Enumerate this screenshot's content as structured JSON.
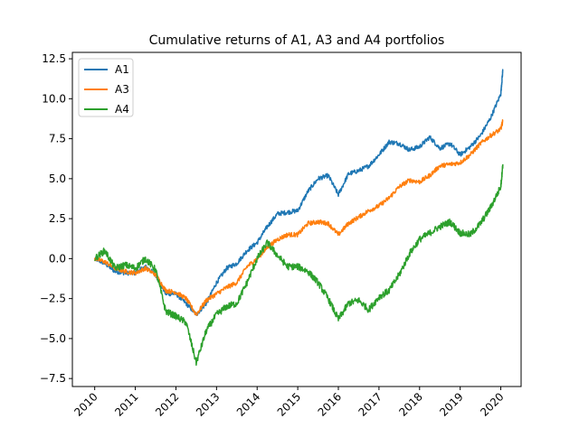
{
  "chart_data": {
    "type": "line",
    "title": "Cumulative returns of A1, A3 and A4 portfolios",
    "xlabel": "",
    "ylabel": "",
    "x_tick_labels": [
      "2010",
      "2011",
      "2012",
      "2013",
      "2014",
      "2015",
      "2016",
      "2017",
      "2018",
      "2019",
      "2020"
    ],
    "y_tick_labels": [
      "12.5",
      "10.0",
      "7.5",
      "5.0",
      "2.5",
      "0.0",
      "−2.5",
      "−5.0",
      "−7.5"
    ],
    "y_ticks": [
      12.5,
      10.0,
      7.5,
      5.0,
      2.5,
      0.0,
      -2.5,
      -5.0,
      -7.5
    ],
    "xlim": [
      2009.45,
      2020.5
    ],
    "ylim": [
      -8.0,
      12.9
    ],
    "grid": false,
    "legend": "upper left",
    "x": [
      2010.0,
      2010.25,
      2010.5,
      2010.75,
      2011.0,
      2011.25,
      2011.5,
      2011.75,
      2012.0,
      2012.25,
      2012.5,
      2012.75,
      2013.0,
      2013.25,
      2013.5,
      2013.75,
      2014.0,
      2014.25,
      2014.5,
      2014.75,
      2015.0,
      2015.25,
      2015.5,
      2015.75,
      2016.0,
      2016.25,
      2016.5,
      2016.75,
      2017.0,
      2017.25,
      2017.5,
      2017.75,
      2018.0,
      2018.25,
      2018.5,
      2018.75,
      2019.0,
      2019.25,
      2019.5,
      2019.75,
      2020.0,
      2020.05
    ],
    "series": [
      {
        "name": "A1",
        "color": "#1f77b4",
        "values": [
          0.0,
          -0.3,
          -0.8,
          -0.9,
          -0.9,
          -0.5,
          -1.0,
          -2.2,
          -2.2,
          -2.8,
          -3.5,
          -2.8,
          -1.5,
          -0.6,
          -0.3,
          0.5,
          1.0,
          2.0,
          2.8,
          2.9,
          3.0,
          4.2,
          5.0,
          5.2,
          4.0,
          5.3,
          5.5,
          5.8,
          6.5,
          7.3,
          7.2,
          6.8,
          7.0,
          7.6,
          6.9,
          7.2,
          6.5,
          7.0,
          7.7,
          8.8,
          10.3,
          11.8
        ]
      },
      {
        "name": "A3",
        "color": "#ff7f0e",
        "values": [
          0.0,
          -0.2,
          -0.6,
          -0.8,
          -0.9,
          -0.6,
          -1.0,
          -2.0,
          -2.1,
          -2.5,
          -3.5,
          -2.6,
          -2.2,
          -1.8,
          -1.5,
          -0.5,
          0.0,
          0.7,
          1.2,
          1.5,
          1.5,
          2.2,
          2.3,
          2.2,
          1.5,
          2.2,
          2.6,
          3.0,
          3.3,
          3.8,
          4.5,
          4.9,
          4.8,
          5.2,
          5.8,
          5.9,
          6.0,
          6.5,
          7.2,
          7.7,
          8.1,
          8.6
        ]
      },
      {
        "name": "A4",
        "color": "#2ca02c",
        "values": [
          0.0,
          0.5,
          -0.6,
          -0.4,
          -0.6,
          0.0,
          -0.7,
          -3.3,
          -3.6,
          -4.0,
          -6.5,
          -4.5,
          -3.5,
          -3.0,
          -2.8,
          -1.5,
          0.0,
          1.0,
          0.2,
          -0.5,
          -0.5,
          -0.8,
          -1.5,
          -2.5,
          -3.8,
          -2.8,
          -2.6,
          -3.2,
          -2.4,
          -2.0,
          -1.0,
          0.3,
          1.2,
          1.6,
          2.0,
          2.3,
          1.6,
          1.5,
          2.2,
          3.2,
          4.5,
          5.9
        ]
      }
    ]
  }
}
